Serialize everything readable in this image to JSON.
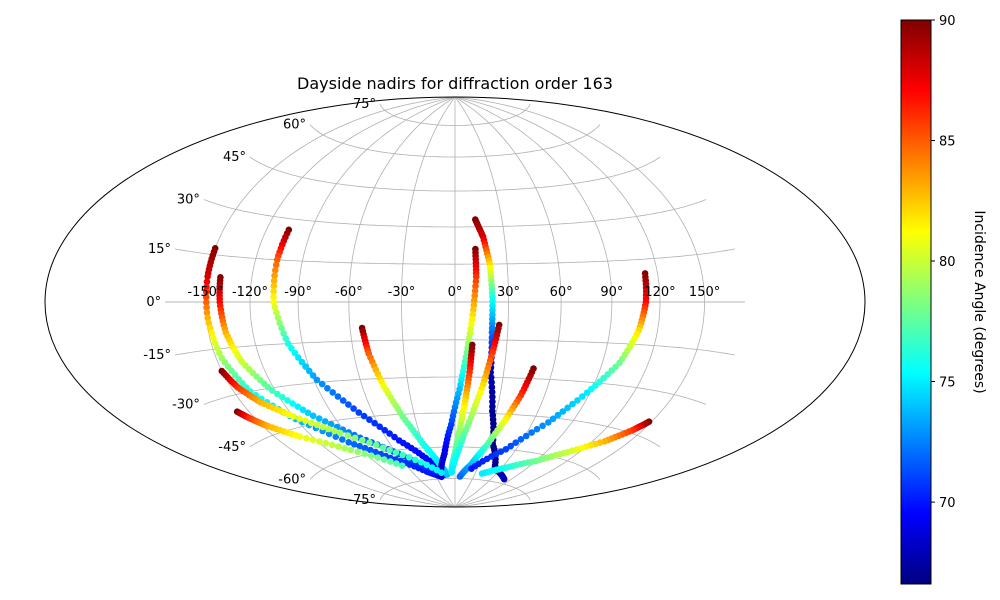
{
  "chart_data": {
    "type": "scatter",
    "projection": "aitoff-hammer (all-sky)",
    "title": "Dayside nadirs for diffraction order 163",
    "colorbar": {
      "label": "Incidence Angle (degrees)",
      "colormap": "jet",
      "range": [
        66.6,
        90
      ],
      "ticks": [
        70,
        75,
        80,
        85,
        90
      ],
      "tick_labels": [
        "70",
        "75",
        "80",
        "85",
        "90"
      ]
    },
    "lon_ticks": [
      -150,
      -120,
      -90,
      -60,
      -30,
      0,
      30,
      60,
      90,
      120,
      150
    ],
    "lon_tick_labels": [
      "-150°",
      "-120°",
      "-90°",
      "-60°",
      "-30°",
      "0°",
      "30°",
      "60°",
      "90°",
      "120°",
      "150°"
    ],
    "lat_ticks": [
      75,
      60,
      45,
      30,
      15,
      0,
      -15,
      -30,
      -45,
      -60,
      -75
    ],
    "lat_tick_labels": [
      "75°",
      "60°",
      "45°",
      "30°",
      "15°",
      "0°",
      "-15°",
      "-30°",
      "-45°",
      "-60°",
      "-75°"
    ],
    "grid": true,
    "series": [
      {
        "lon": [
          -150,
          -150,
          -149,
          -146,
          -138,
          -120,
          -95,
          -70,
          -40,
          -22
        ],
        "lat": [
          17,
          8,
          -5,
          -18,
          -30,
          -42,
          -54,
          -63,
          -71,
          -74
        ],
        "incidence": [
          90,
          88,
          83,
          79,
          76,
          74,
          72,
          71,
          70,
          69.5
        ]
      },
      {
        "lon": [
          -141,
          -140,
          -138,
          -133,
          -122,
          -105,
          -82,
          -55,
          -30
        ],
        "lat": [
          8,
          0,
          -10,
          -20,
          -31,
          -42,
          -53,
          -63,
          -72
        ],
        "incidence": [
          90,
          87,
          83,
          80,
          77,
          74,
          72,
          71,
          70
        ]
      },
      {
        "lon": [
          -105,
          -106,
          -105,
          -99,
          -88,
          -70,
          -50,
          -30,
          -15
        ],
        "lat": [
          26,
          15,
          0,
          -15,
          -29,
          -43,
          -56,
          -66,
          -73
        ],
        "incidence": [
          90,
          85,
          81,
          76,
          73,
          71,
          70,
          69.5,
          69
        ]
      },
      {
        "lon": [
          -53,
          -51,
          -46,
          -39,
          -30,
          -20,
          -12
        ],
        "lat": [
          -10,
          -20,
          -33,
          -46,
          -58,
          -67,
          -73
        ],
        "incidence": [
          90,
          85,
          81,
          78,
          76,
          75,
          74
        ]
      },
      {
        "lon": [
          12,
          12,
          10,
          7,
          3,
          -3,
          -11,
          -22
        ],
        "lat": [
          21,
          10,
          -5,
          -20,
          -35,
          -50,
          -63,
          -73
        ],
        "incidence": [
          90,
          86,
          82,
          78,
          74,
          71,
          69,
          68
        ]
      },
      {
        "lon": [
          13,
          17,
          20,
          21,
          21,
          22,
          27,
          35,
          52,
          80
        ],
        "lat": [
          33,
          26,
          15,
          2,
          -12,
          -28,
          -44,
          -58,
          -69,
          -73
        ],
        "incidence": [
          90,
          88,
          82,
          76,
          72,
          68,
          67,
          66.8,
          67,
          68
        ]
      },
      {
        "lon": [
          10,
          9,
          7,
          4,
          0,
          -5
        ],
        "lat": [
          -17,
          -28,
          -40,
          -52,
          -63,
          -71
        ],
        "incidence": [
          90,
          86,
          82,
          79,
          77,
          76
        ]
      },
      {
        "lon": [
          25,
          22,
          18,
          12,
          4,
          -5
        ],
        "lat": [
          -9,
          -20,
          -33,
          -47,
          -61,
          -72
        ],
        "incidence": [
          90,
          86,
          82,
          79,
          76,
          75
        ]
      },
      {
        "lon": [
          48,
          44,
          38,
          30,
          20,
          8
        ],
        "lat": [
          -26,
          -37,
          -48,
          -59,
          -68,
          -74
        ],
        "incidence": [
          90,
          86,
          81,
          77,
          74,
          72
        ]
      },
      {
        "lon": [
          112,
          111,
          108,
          101,
          88,
          72,
          50,
          22
        ],
        "lat": [
          10,
          0,
          -10,
          -22,
          -34,
          -47,
          -60,
          -70
        ],
        "incidence": [
          90,
          87,
          82,
          78,
          75,
          73,
          71,
          70
        ]
      },
      {
        "lon": [
          -150,
          -145,
          -136,
          -120,
          -95,
          -60,
          -20
        ],
        "lat": [
          -22,
          -28,
          -34,
          -41,
          -50,
          -61,
          -72
        ],
        "incidence": [
          90,
          86,
          83,
          81,
          79,
          77,
          75
        ]
      },
      {
        "lon": [
          -159,
          -154,
          -146,
          -130,
          -100,
          -65
        ],
        "lat": [
          -35,
          -38,
          -42,
          -48,
          -57,
          -67
        ],
        "incidence": [
          90,
          86,
          83,
          81,
          79,
          77
        ]
      },
      {
        "lon": [
          148,
          142,
          130,
          110,
          90,
          65,
          40
        ],
        "lat": [
          -40,
          -44,
          -50,
          -57,
          -63,
          -68,
          -72
        ],
        "incidence": [
          90,
          86,
          83,
          80,
          78,
          76,
          75
        ]
      }
    ]
  }
}
